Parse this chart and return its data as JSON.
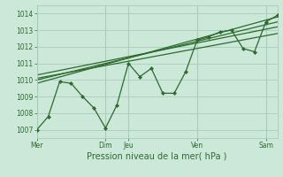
{
  "bg_color": "#cce8d8",
  "grid_color": "#aaccbb",
  "line_color": "#2d6a2d",
  "ylim": [
    1006.5,
    1014.5
  ],
  "yticks": [
    1007,
    1008,
    1009,
    1010,
    1011,
    1012,
    1013,
    1014
  ],
  "day_labels": [
    "Mer",
    "Dim",
    "Jeu",
    "Ven",
    "Sam"
  ],
  "day_positions": [
    0,
    6,
    8,
    14,
    20
  ],
  "xlim": [
    0,
    21
  ],
  "series1_x": [
    0,
    1,
    2,
    3,
    4,
    5,
    6,
    7,
    8,
    9,
    10,
    11,
    12,
    13,
    14,
    15,
    16,
    17,
    18,
    19,
    20,
    21
  ],
  "series1_y": [
    1007.0,
    1007.8,
    1009.9,
    1009.8,
    1009.0,
    1008.3,
    1007.1,
    1008.5,
    1011.0,
    1010.2,
    1010.7,
    1009.2,
    1009.2,
    1010.5,
    1012.4,
    1012.6,
    1012.9,
    1013.0,
    1011.9,
    1011.7,
    1013.5,
    1013.9
  ],
  "series2_x": [
    0,
    21
  ],
  "series2_y": [
    1009.8,
    1013.8
  ],
  "series3_x": [
    0,
    21
  ],
  "series3_y": [
    1010.1,
    1012.8
  ],
  "series4_x": [
    0,
    21
  ],
  "series4_y": [
    1010.3,
    1013.2
  ],
  "series5_x": [
    0,
    21
  ],
  "series5_y": [
    1010.0,
    1013.5
  ],
  "xlabel": "Pression niveau de la mer( hPa )",
  "tick_fontsize": 5.5,
  "xlabel_fontsize": 7.0
}
